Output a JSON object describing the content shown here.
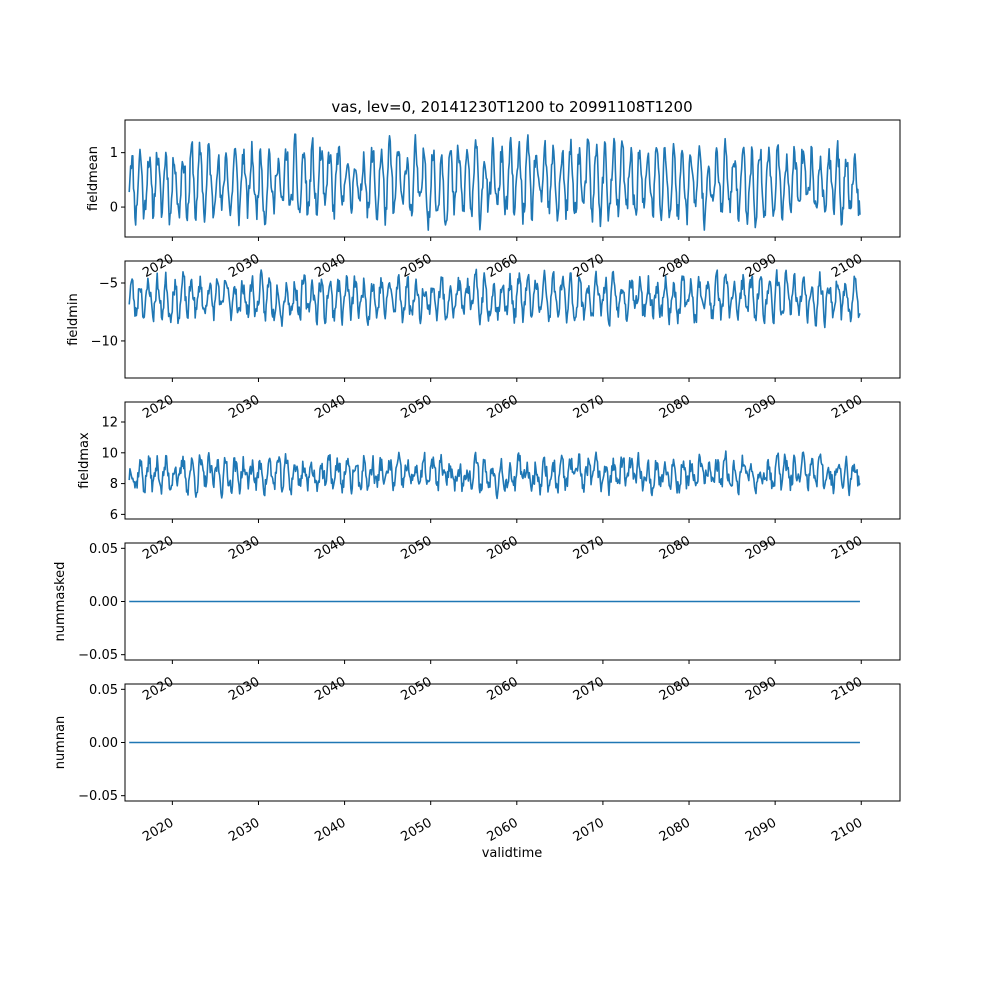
{
  "title": "vas, lev=0, 20141230T1200 to 20991108T1200",
  "xlabel": "validtime",
  "colors": {
    "line": "#1f77b4",
    "axes": "#000000"
  },
  "chart_data": [
    {
      "type": "line",
      "ylabel": "fieldmean",
      "xlim": [
        2014.5,
        2104.5
      ],
      "ylim": [
        -0.55,
        1.6
      ],
      "yticks": [
        0,
        1
      ],
      "ytick_labels": [
        "0",
        "1"
      ],
      "xticks": [
        2020,
        2030,
        2040,
        2050,
        2060,
        2070,
        2080,
        2090,
        2100
      ],
      "xtick_labels": [
        "2020",
        "2030",
        "2040",
        "2050",
        "2060",
        "2070",
        "2080",
        "2090",
        "2100"
      ],
      "x_start": 2014.99,
      "x_end": 2099.85,
      "signal": {
        "base": 0.45,
        "amplitude": 0.55,
        "period_years": 1.0,
        "noise": 0.45,
        "min": -0.52,
        "max": 1.46,
        "points": 1020,
        "seed": 11
      }
    },
    {
      "type": "line",
      "ylabel": "fieldmin",
      "xlim": [
        2014.5,
        2104.5
      ],
      "ylim": [
        -13.2,
        -3.1
      ],
      "yticks": [
        -10,
        -5
      ],
      "ytick_labels": [
        "−10",
        "−5"
      ],
      "xticks": [
        2020,
        2030,
        2040,
        2050,
        2060,
        2070,
        2080,
        2090,
        2100
      ],
      "xtick_labels": [
        "2020",
        "2030",
        "2040",
        "2050",
        "2060",
        "2070",
        "2080",
        "2090",
        "2100"
      ],
      "x_start": 2014.99,
      "x_end": 2099.85,
      "signal": {
        "base": -6.3,
        "amplitude": 1.4,
        "period_years": 1.0,
        "noise": 1.5,
        "min": -13.0,
        "max": -3.8,
        "points": 1020,
        "seed": 23
      }
    },
    {
      "type": "line",
      "ylabel": "fieldmax",
      "xlim": [
        2014.5,
        2104.5
      ],
      "ylim": [
        5.7,
        13.3
      ],
      "yticks": [
        6,
        8,
        10,
        12
      ],
      "ytick_labels": [
        "6",
        "8",
        "10",
        "12"
      ],
      "xticks": [
        2020,
        2030,
        2040,
        2050,
        2060,
        2070,
        2080,
        2090,
        2100
      ],
      "xtick_labels": [
        "2020",
        "2030",
        "2040",
        "2050",
        "2060",
        "2070",
        "2080",
        "2090",
        "2100"
      ],
      "x_start": 2014.99,
      "x_end": 2099.85,
      "signal": {
        "base": 8.6,
        "amplitude": 0.7,
        "period_years": 1.0,
        "noise": 1.1,
        "min": 6.0,
        "max": 12.9,
        "points": 1020,
        "seed": 37
      }
    },
    {
      "type": "line",
      "ylabel": "nummasked",
      "xlim": [
        2014.5,
        2104.5
      ],
      "ylim": [
        -0.055,
        0.055
      ],
      "yticks": [
        -0.05,
        0.0,
        0.05
      ],
      "ytick_labels": [
        "−0.05",
        "0.00",
        "0.05"
      ],
      "xticks": [
        2020,
        2030,
        2040,
        2050,
        2060,
        2070,
        2080,
        2090,
        2100
      ],
      "xtick_labels": [
        "2020",
        "2030",
        "2040",
        "2050",
        "2060",
        "2070",
        "2080",
        "2090",
        "2100"
      ],
      "x": [
        2014.99,
        2099.85
      ],
      "y": [
        0,
        0
      ]
    },
    {
      "type": "line",
      "ylabel": "numnan",
      "xlim": [
        2014.5,
        2104.5
      ],
      "ylim": [
        -0.055,
        0.055
      ],
      "yticks": [
        -0.05,
        0.0,
        0.05
      ],
      "ytick_labels": [
        "−0.05",
        "0.00",
        "0.05"
      ],
      "xticks": [
        2020,
        2030,
        2040,
        2050,
        2060,
        2070,
        2080,
        2090,
        2100
      ],
      "xtick_labels": [
        "2020",
        "2030",
        "2040",
        "2050",
        "2060",
        "2070",
        "2080",
        "2090",
        "2100"
      ],
      "x": [
        2014.99,
        2099.85
      ],
      "y": [
        0,
        0
      ]
    }
  ]
}
